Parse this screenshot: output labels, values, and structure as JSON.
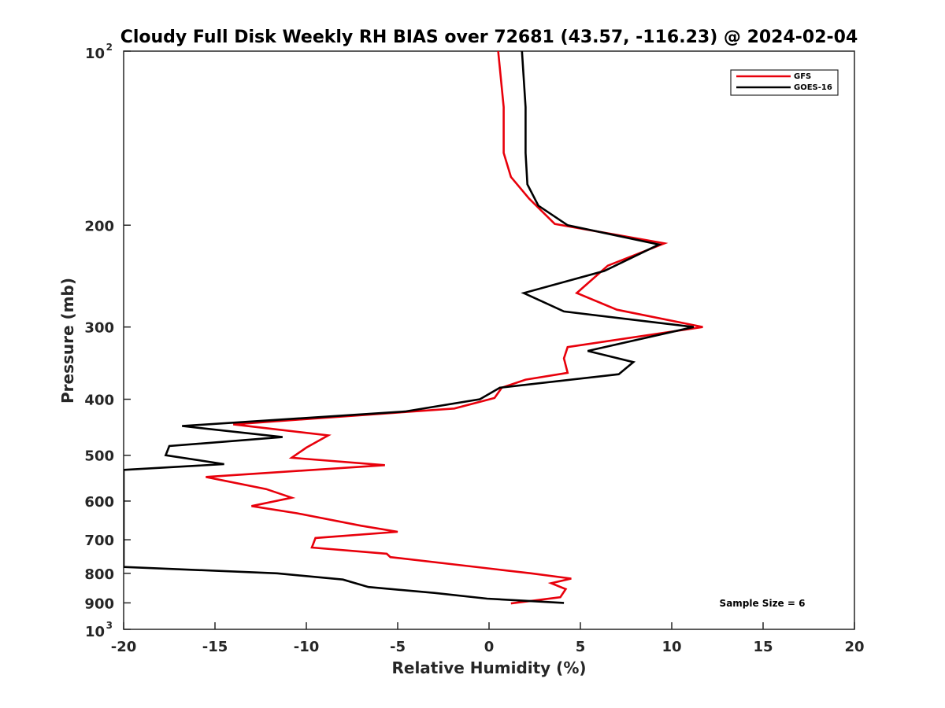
{
  "chart_data": {
    "type": "line",
    "title": "Cloudy Full Disk Weekly RH BIAS over 72681 (43.57, -116.23) @ 2024-02-04",
    "xlabel": "Relative Humidity (%)",
    "ylabel": "Pressure (mb)",
    "xlim": [
      -20,
      20
    ],
    "ylim": [
      100,
      1000
    ],
    "y_scale": "log",
    "y_reversed": true,
    "grid": false,
    "legend_position": "top-right",
    "x_ticks": [
      -20,
      -15,
      -10,
      -5,
      0,
      5,
      10,
      15,
      20
    ],
    "y_ticks": [
      {
        "value": 100,
        "base": "10",
        "exp": "2"
      },
      {
        "value": 200,
        "label": "200"
      },
      {
        "value": 300,
        "label": "300"
      },
      {
        "value": 400,
        "label": "400"
      },
      {
        "value": 500,
        "label": "500"
      },
      {
        "value": 600,
        "label": "600"
      },
      {
        "value": 700,
        "label": "700"
      },
      {
        "value": 800,
        "label": "800"
      },
      {
        "value": 900,
        "label": "900"
      },
      {
        "value": 1000,
        "base": "10",
        "exp": "3"
      }
    ],
    "annotation": "Sample Size = 6",
    "series": [
      {
        "name": "GFS",
        "color": "#e8000b",
        "points": [
          [
            0.5,
            100
          ],
          [
            0.8,
            125
          ],
          [
            0.8,
            150
          ],
          [
            1.2,
            165
          ],
          [
            2.2,
            180
          ],
          [
            3.6,
            199
          ],
          [
            9.6,
            215
          ],
          [
            6.5,
            235
          ],
          [
            4.8,
            262
          ],
          [
            7.0,
            280
          ],
          [
            11.7,
            300
          ],
          [
            4.3,
            325
          ],
          [
            4.1,
            340
          ],
          [
            4.3,
            360
          ],
          [
            2.0,
            370
          ],
          [
            0.7,
            382
          ],
          [
            0.3,
            398
          ],
          [
            -1.9,
            415
          ],
          [
            -14.0,
            442
          ],
          [
            -8.8,
            462
          ],
          [
            -10.0,
            485
          ],
          [
            -10.8,
            505
          ],
          [
            -5.7,
            520
          ],
          [
            -15.5,
            545
          ],
          [
            -12.2,
            572
          ],
          [
            -10.8,
            592
          ],
          [
            -13.0,
            612
          ],
          [
            -10.5,
            630
          ],
          [
            -7.0,
            662
          ],
          [
            -5.0,
            678
          ],
          [
            -9.5,
            695
          ],
          [
            -9.7,
            722
          ],
          [
            -5.6,
            740
          ],
          [
            -5.4,
            750
          ],
          [
            2.3,
            800
          ],
          [
            4.5,
            817
          ],
          [
            3.4,
            832
          ],
          [
            4.2,
            852
          ],
          [
            3.9,
            880
          ],
          [
            1.2,
            902
          ]
        ]
      },
      {
        "name": "GOES-16",
        "color": "#000000",
        "points": [
          [
            1.8,
            100
          ],
          [
            2.0,
            125
          ],
          [
            2.0,
            150
          ],
          [
            2.1,
            170
          ],
          [
            2.7,
            185
          ],
          [
            4.3,
            200
          ],
          [
            9.3,
            216
          ],
          [
            6.3,
            240
          ],
          [
            1.9,
            262
          ],
          [
            4.1,
            282
          ],
          [
            11.2,
            300
          ],
          [
            5.4,
            330
          ],
          [
            7.9,
            345
          ],
          [
            7.1,
            362
          ],
          [
            0.6,
            382
          ],
          [
            -0.5,
            400
          ],
          [
            -4.6,
            420
          ],
          [
            -16.8,
            445
          ],
          [
            -11.3,
            465
          ],
          [
            -17.5,
            482
          ],
          [
            -17.7,
            500
          ],
          [
            -14.5,
            518
          ],
          [
            -20.0,
            530
          ],
          [
            -20.0,
            780
          ],
          [
            -11.6,
            800
          ],
          [
            -8.0,
            820
          ],
          [
            -6.6,
            845
          ],
          [
            -3.0,
            865
          ],
          [
            -0.1,
            885
          ],
          [
            4.1,
            900
          ]
        ]
      }
    ]
  }
}
